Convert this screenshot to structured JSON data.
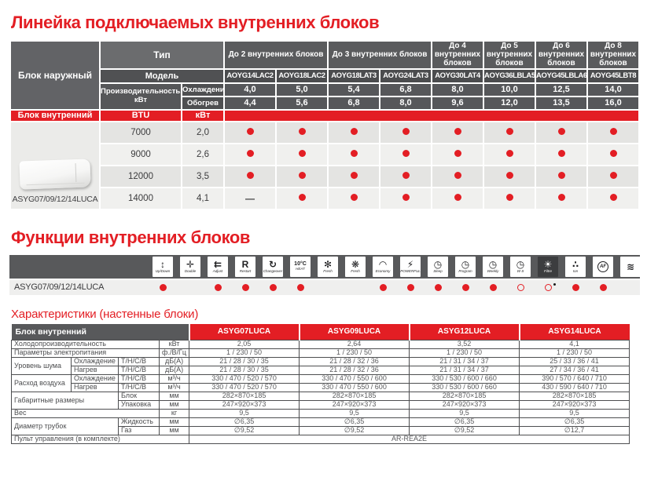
{
  "colors": {
    "accent": "#e31e24",
    "header_gray": "#58595b",
    "cell_dark": "#4b4c4e",
    "row_dark": "#e4e4e2",
    "row_light": "#f0f0ee"
  },
  "lineup": {
    "title": "Линейка подключаемых внутренних блоков",
    "outdoor_label": "Блок наружный",
    "type_label": "Тип",
    "model_label": "Модель",
    "capacity_label": "Производительность, кВт",
    "cooling_label": "Охлаждение",
    "heating_label": "Обогрев",
    "indoor_label": "Блок внутренний",
    "btu_label": "BTU",
    "kw_label": "кВт",
    "indoor_caption": "ASYG07/09/12/14LUCA",
    "groups": [
      {
        "label": "До 2 внутренних блоков",
        "span": 2
      },
      {
        "label": "До 3 внутренних блоков",
        "span": 2
      },
      {
        "label": "До 4 внутренних блоков",
        "span": 1
      },
      {
        "label": "До 5 внутренних блоков",
        "span": 1
      },
      {
        "label": "До 6 внутренних блоков",
        "span": 1
      },
      {
        "label": "До 8 внутренних блоков",
        "span": 1
      }
    ],
    "models": [
      "AOYG14LAC2",
      "AOYG18LAC2",
      "AOYG18LAT3",
      "AOYG24LAT3",
      "AOYG30LAT4",
      "AOYG36LBLA5",
      "AOYG45LBLA6",
      "AOYG45LBT8"
    ],
    "cooling": [
      "4,0",
      "5,0",
      "5,4",
      "6,8",
      "8,0",
      "10,0",
      "12,5",
      "14,0"
    ],
    "heating": [
      "4,4",
      "5,6",
      "6,8",
      "8,0",
      "9,6",
      "12,0",
      "13,5",
      "16,0"
    ],
    "rows": [
      {
        "btu": "7000",
        "kw": "2,0",
        "dots": [
          "filled",
          "filled",
          "filled",
          "filled",
          "filled",
          "filled",
          "filled",
          "filled"
        ]
      },
      {
        "btu": "9000",
        "kw": "2,6",
        "dots": [
          "filled",
          "filled",
          "filled",
          "filled",
          "filled",
          "filled",
          "filled",
          "filled"
        ]
      },
      {
        "btu": "12000",
        "kw": "3,5",
        "dots": [
          "filled",
          "filled",
          "filled",
          "filled",
          "filled",
          "filled",
          "filled",
          "filled"
        ]
      },
      {
        "btu": "14000",
        "kw": "4,1",
        "dots": [
          "dash",
          "filled",
          "filled",
          "filled",
          "filled",
          "filled",
          "filled",
          "filled"
        ]
      }
    ]
  },
  "functions": {
    "title": "Функции внутренних блоков",
    "row_label": "ASYG07/09/12/14LUCA",
    "icons": [
      {
        "name": "updown-swing-icon",
        "glyph": "↕",
        "label": "Up/Down",
        "state": "filled"
      },
      {
        "name": "double-swing-icon",
        "glyph": "✛",
        "label": "Double",
        "state": "none"
      },
      {
        "name": "adjust-airflow-icon",
        "glyph": "⇇",
        "label": "Adjust",
        "state": "filled"
      },
      {
        "name": "auto-restart-icon",
        "glyph": "R",
        "label": "Restart",
        "state": "filled"
      },
      {
        "name": "auto-changeover-icon",
        "glyph": "↻",
        "label": "Changeover",
        "state": "filled"
      },
      {
        "name": "heat-10c-icon",
        "glyph": "10°C",
        "label": "HEAT",
        "state": "filled"
      },
      {
        "name": "quiet-fan-icon",
        "glyph": "✻",
        "label": "Fresh",
        "state": "none"
      },
      {
        "name": "fresh-fan-icon",
        "glyph": "❋",
        "label": "Fresh",
        "state": "none"
      },
      {
        "name": "economy-icon",
        "glyph": "◠",
        "label": "Economy",
        "state": "filled"
      },
      {
        "name": "powerful-icon",
        "glyph": "⚡",
        "label": "POWERFUL",
        "state": "filled"
      },
      {
        "name": "sleep-timer-icon",
        "glyph": "◷",
        "label": "Sleep",
        "state": "filled"
      },
      {
        "name": "program-timer-icon",
        "glyph": "◷",
        "label": "Program",
        "state": "filled"
      },
      {
        "name": "weekly-timer-icon",
        "glyph": "◷",
        "label": "Weekly",
        "state": "filled"
      },
      {
        "name": "ws-timer-icon",
        "glyph": "◷",
        "label": "W-S",
        "state": "hollow"
      },
      {
        "name": "filter-icon",
        "glyph": "☀",
        "label": "Filtre",
        "state": "hollow-asterisk",
        "dark": true
      },
      {
        "name": "ion-icon",
        "glyph": "∴",
        "label": "Ion",
        "state": "filled"
      },
      {
        "name": "af-filter-icon",
        "glyph": "AF",
        "label": "",
        "state": "filled",
        "circled": true
      },
      {
        "name": "waves-icon",
        "glyph": "≋",
        "label": "",
        "state": "none"
      }
    ]
  },
  "specs": {
    "title": "Характеристики (настенные блоки)",
    "header": "Блок внутренний",
    "models": [
      "ASYG07LUCA",
      "ASYG09LUCA",
      "ASYG12LUCA",
      "ASYG14LUCA"
    ],
    "rows": [
      {
        "cells": [
          {
            "t": "Холодопроизводительность",
            "cs": 3
          },
          {
            "t": "кВт",
            "u": 1
          }
        ],
        "values": [
          "2,05",
          "2,64",
          "3,52",
          "4,1"
        ]
      },
      {
        "cells": [
          {
            "t": "Параметры электропитания",
            "cs": 3
          },
          {
            "t": "ф./В/Гц",
            "u": 1
          }
        ],
        "values": [
          "1 / 230 / 50",
          "1 / 230 / 50",
          "1 / 230 / 50",
          "1 / 230 / 50"
        ]
      },
      {
        "cells": [
          {
            "t": "Уровень шума",
            "rs": 2
          },
          {
            "t": "Охлаждение"
          },
          {
            "t": "Т/Н/С/В"
          },
          {
            "t": "дБ(А)",
            "u": 1
          }
        ],
        "values": [
          "21 / 28 / 30 / 35",
          "21 / 28 / 32 / 36",
          "21 / 31 / 34 / 37",
          "25 / 33 / 36 / 41"
        ]
      },
      {
        "cells": [
          {
            "t": "Нагрев"
          },
          {
            "t": "Т/Н/С/В"
          },
          {
            "t": "дБ(А)",
            "u": 1
          }
        ],
        "values": [
          "21 / 28 / 30 / 35",
          "21 / 28 / 32 / 36",
          "21 / 31 / 34 / 37",
          "27 / 34 / 36 / 41"
        ]
      },
      {
        "cells": [
          {
            "t": "Расход воздуха",
            "rs": 2
          },
          {
            "t": "Охлаждение"
          },
          {
            "t": "Т/Н/С/В"
          },
          {
            "t": "м³/ч",
            "u": 1
          }
        ],
        "values": [
          "330 / 470 / 520 / 570",
          "330 / 470 / 550 / 600",
          "330 / 530 / 600 / 660",
          "390 / 570 / 640 / 710"
        ]
      },
      {
        "cells": [
          {
            "t": "Нагрев"
          },
          {
            "t": "Т/Н/С/В"
          },
          {
            "t": "м³/ч",
            "u": 1
          }
        ],
        "values": [
          "330 / 470 / 520 / 570",
          "330 / 470 / 550 / 600",
          "330 / 530 / 600 / 660",
          "430 / 590 / 640 / 710"
        ]
      },
      {
        "cells": [
          {
            "t": "Габаритные размеры",
            "rs": 2,
            "cs": 2
          },
          {
            "t": "Блок"
          },
          {
            "t": "мм",
            "u": 1
          }
        ],
        "values": [
          "282×870×185",
          "282×870×185",
          "282×870×185",
          "282×870×185"
        ]
      },
      {
        "cells": [
          {
            "t": "Упаковка"
          },
          {
            "t": "мм",
            "u": 1
          }
        ],
        "values": [
          "247×920×373",
          "247×920×373",
          "247×920×373",
          "247×920×373"
        ]
      },
      {
        "cells": [
          {
            "t": "Вес",
            "cs": 3
          },
          {
            "t": "кг",
            "u": 1
          }
        ],
        "values": [
          "9,5",
          "9,5",
          "9,5",
          "9,5"
        ]
      },
      {
        "cells": [
          {
            "t": "Диаметр трубок",
            "rs": 2,
            "cs": 2
          },
          {
            "t": "Жидкость"
          },
          {
            "t": "мм",
            "u": 1
          }
        ],
        "values": [
          "∅6,35",
          "∅6,35",
          "∅6,35",
          "∅6,35"
        ]
      },
      {
        "cells": [
          {
            "t": "Газ"
          },
          {
            "t": "мм",
            "u": 1
          }
        ],
        "values": [
          "∅9,52",
          "∅9,52",
          "∅9,52",
          "∅12,7"
        ]
      },
      {
        "cells": [
          {
            "t": "Пульт управления (в комплекте)",
            "cs": 4
          }
        ],
        "span_value": "AR-REA2E"
      }
    ]
  }
}
